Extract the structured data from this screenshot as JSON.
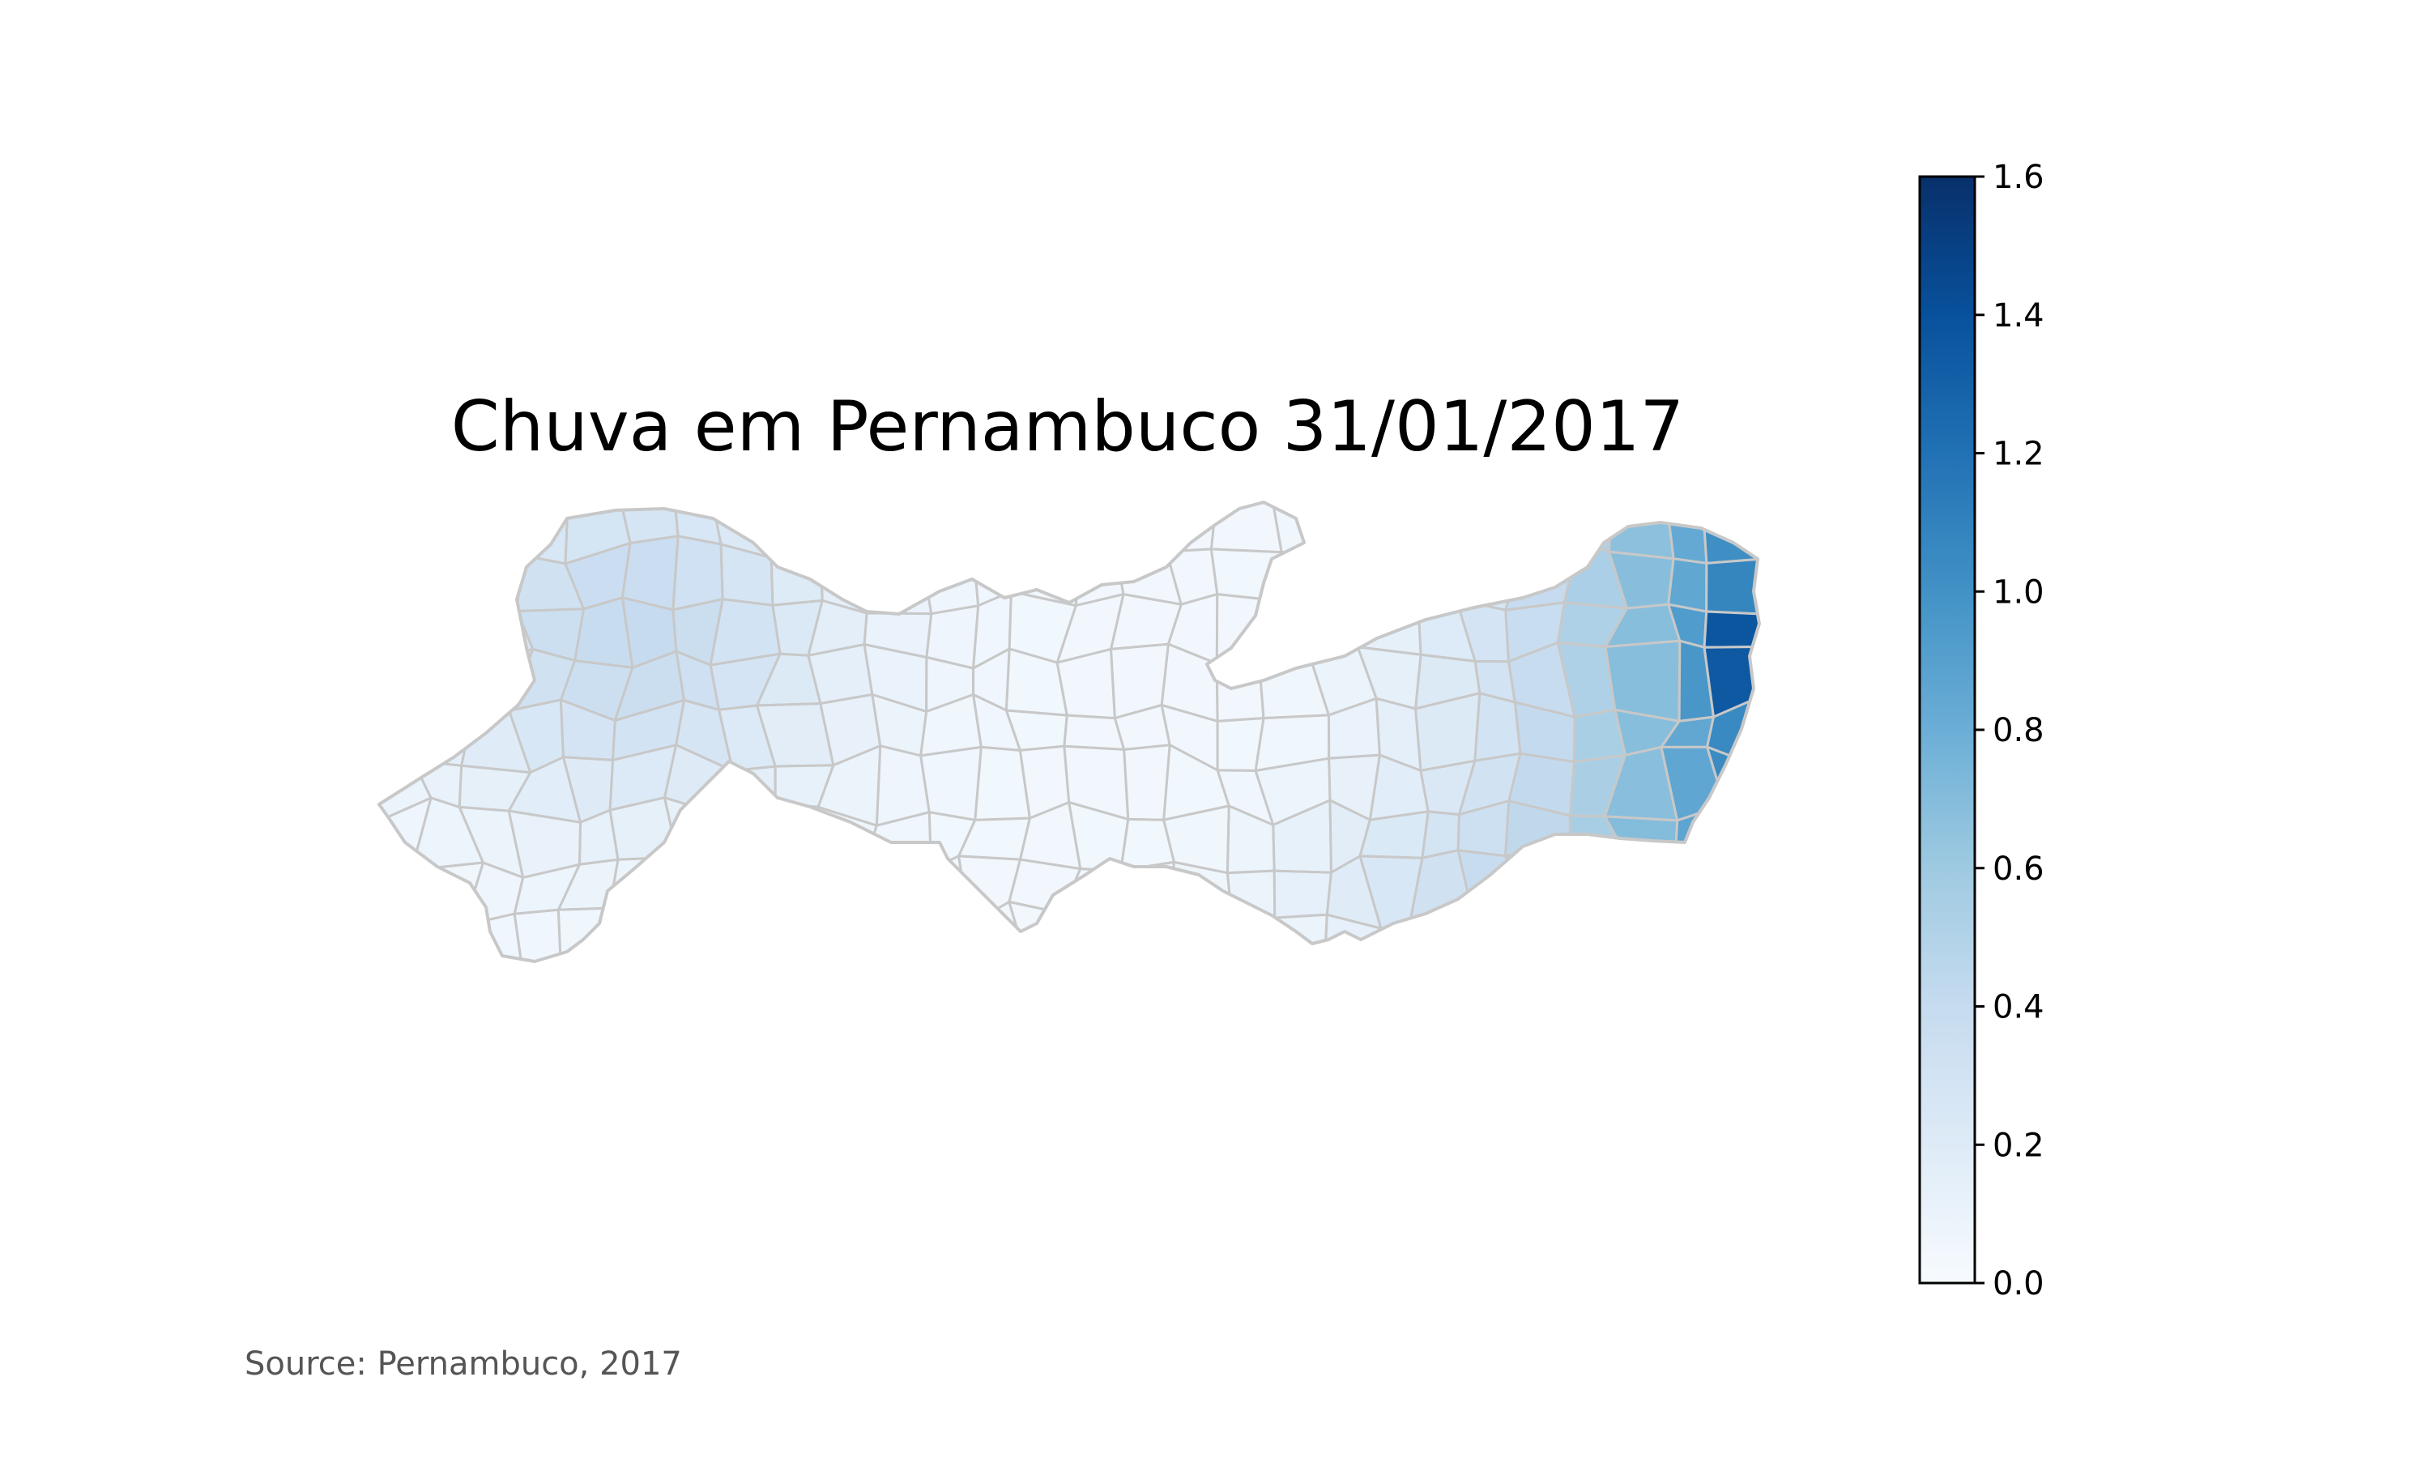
{
  "map": {
    "title": "Chuva em Pernambuco 31/01/2017",
    "source": "Source: Pernambuco, 2017",
    "region": "Pernambuco",
    "colormap": "Blues",
    "border_color": "#c8c8c8"
  },
  "colorbar": {
    "min": 0.0,
    "max": 1.6,
    "ticks": [
      0.0,
      0.2,
      0.4,
      0.6,
      0.8,
      1.0,
      1.2,
      1.4,
      1.6
    ],
    "tick_labels": [
      "0.0",
      "0.2",
      "0.4",
      "0.6",
      "0.8",
      "1.0",
      "1.2",
      "1.4",
      "1.6"
    ],
    "stops": [
      "#f7fbff",
      "#deebf7",
      "#c6dbef",
      "#9ecae1",
      "#6baed6",
      "#4292c6",
      "#2171b5",
      "#08519c",
      "#08306b"
    ]
  }
}
